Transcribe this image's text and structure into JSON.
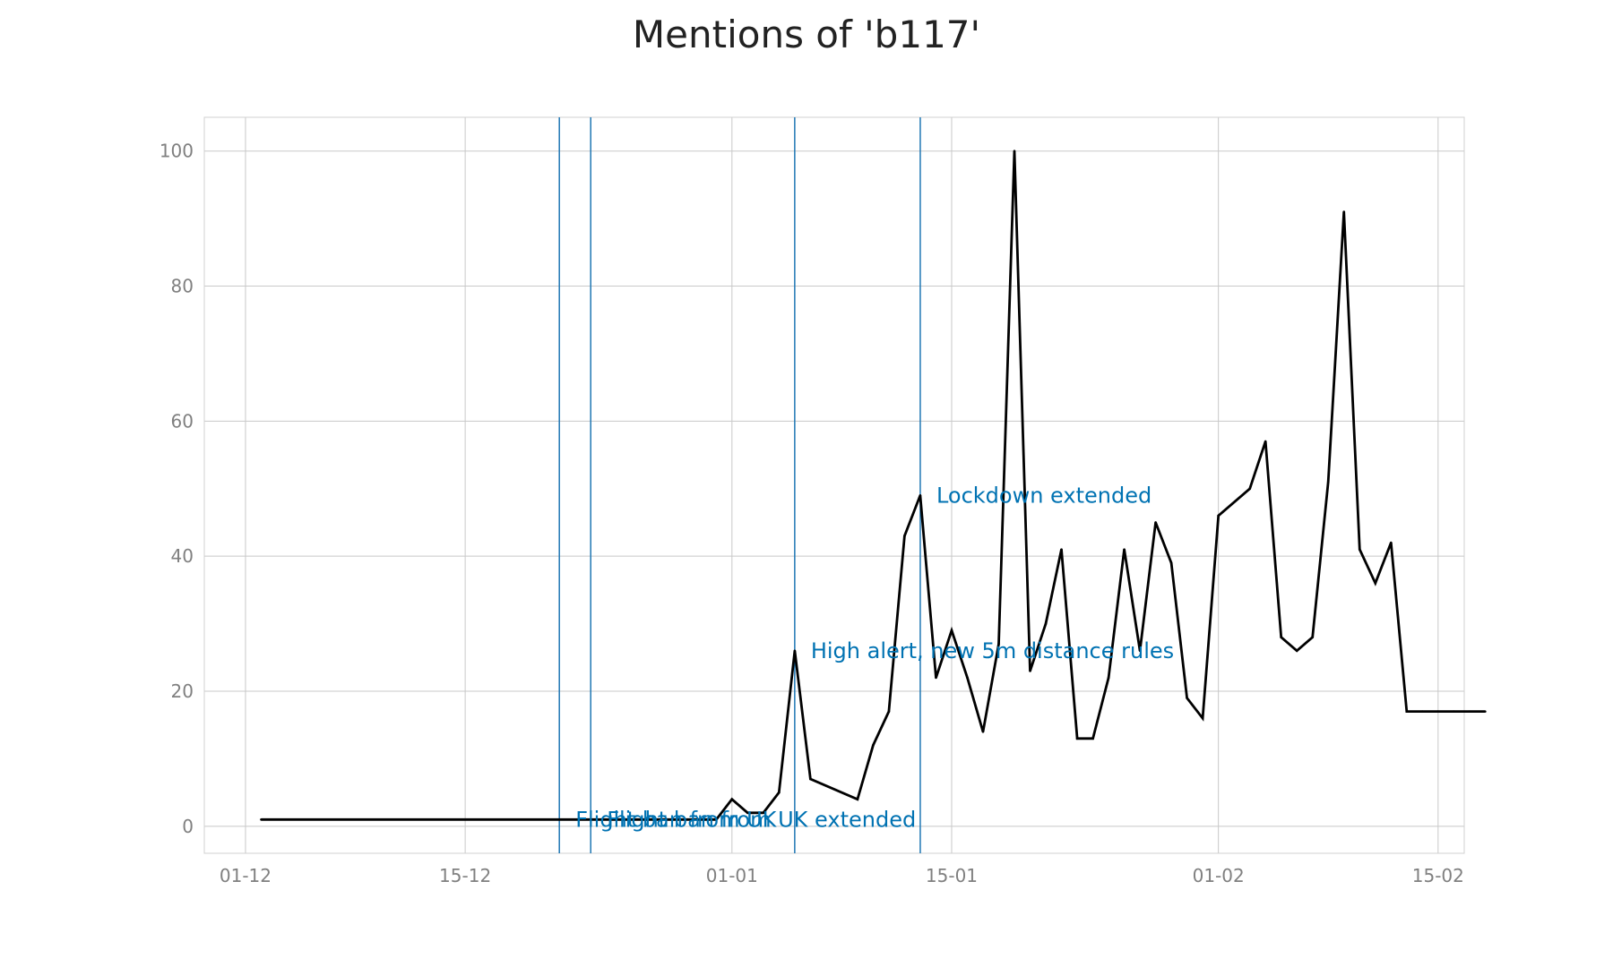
{
  "chart_data": {
    "type": "line",
    "title": "Mentions of 'b117'",
    "xlabel": "",
    "ylabel": "",
    "ylim": [
      -4,
      105
    ],
    "yticks": [
      0,
      20,
      40,
      60,
      80,
      100
    ],
    "xticks": [
      {
        "date": "2020-12-01",
        "label": "01-12"
      },
      {
        "date": "2020-12-15",
        "label": "15-12"
      },
      {
        "date": "2021-01-01",
        "label": "01-01"
      },
      {
        "date": "2021-01-15",
        "label": "15-01"
      },
      {
        "date": "2021-02-01",
        "label": "01-02"
      },
      {
        "date": "2021-02-15",
        "label": "15-02"
      }
    ],
    "xlim": [
      "2020-11-28 09:00",
      "2021-02-16 16:00"
    ],
    "grid": true,
    "line_color": "#000000",
    "event_color": "#1f77b4",
    "label_color": "#0072b2",
    "series": [
      {
        "x": [
          "2020-12-02",
          "2020-12-31",
          "2021-01-01",
          "2021-01-02",
          "2021-01-03",
          "2021-01-04",
          "2021-01-05",
          "2021-01-06",
          "2021-01-09",
          "2021-01-10",
          "2021-01-11",
          "2021-01-12",
          "2021-01-13",
          "2021-01-14",
          "2021-01-15",
          "2021-01-16",
          "2021-01-17",
          "2021-01-18",
          "2021-01-19",
          "2021-01-20",
          "2021-01-21",
          "2021-01-22",
          "2021-01-23",
          "2021-01-24",
          "2021-01-25",
          "2021-01-26",
          "2021-01-27",
          "2021-01-28",
          "2021-01-29",
          "2021-01-30",
          "2021-01-31",
          "2021-02-01",
          "2021-02-03",
          "2021-02-04",
          "2021-02-05",
          "2021-02-06",
          "2021-02-07",
          "2021-02-08",
          "2021-02-09",
          "2021-02-10",
          "2021-02-11",
          "2021-02-12",
          "2021-02-13",
          "2021-02-14",
          "2021-02-15",
          "2021-02-16",
          "2021-02-17",
          "2021-02-18"
        ],
        "y": [
          1,
          1,
          4,
          2,
          2,
          5,
          26,
          7,
          4,
          12,
          17,
          43,
          49,
          22,
          29,
          22,
          14,
          27,
          100,
          23,
          30,
          41,
          13,
          13,
          22,
          41,
          26,
          45,
          39,
          19,
          16,
          46,
          50,
          57,
          28,
          26,
          28,
          51,
          91,
          41,
          36,
          42,
          17,
          17,
          17,
          17,
          17,
          17
        ]
      }
    ],
    "events": [
      {
        "date": "2020-12-21",
        "label": "Flight ban from UK"
      },
      {
        "date": "2020-12-23",
        "label": "Flight ban from UK extended"
      },
      {
        "date": "2021-01-05",
        "label": "High alert, new 5m distance rules"
      },
      {
        "date": "2021-01-13",
        "label": "Lockdown extended"
      }
    ]
  }
}
